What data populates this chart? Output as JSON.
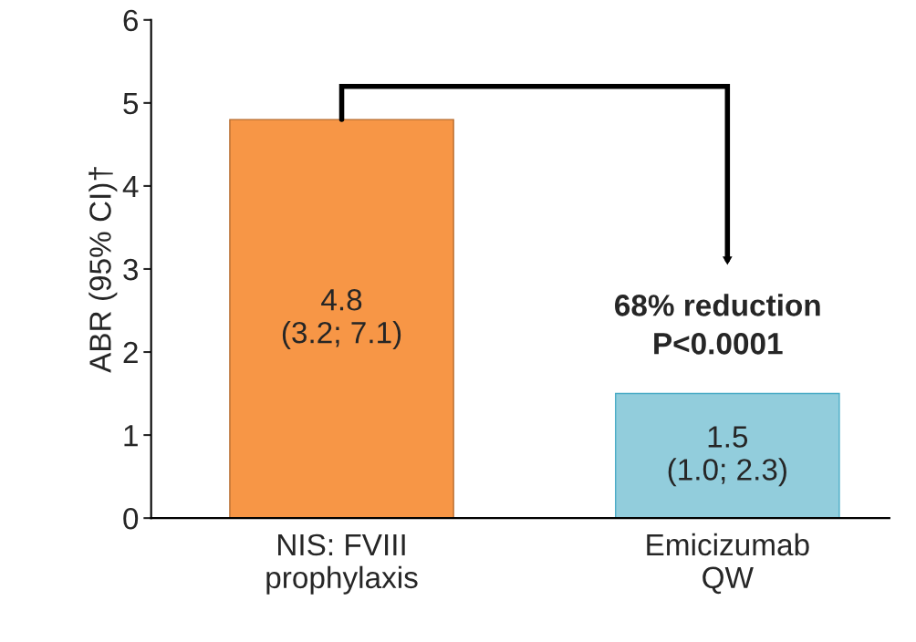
{
  "chart_data": {
    "type": "bar",
    "ylabel": "ABR (95% CI)†",
    "categories": [
      "NIS: FVIII\nprophylaxis",
      "Emicizumab\nQW"
    ],
    "values": [
      4.8,
      1.5
    ],
    "colors": [
      "#f79646",
      "#92cddc"
    ],
    "value_labels": [
      "4.8\n(3.2; 7.1)",
      "1.5\n(1.0; 2.3)"
    ],
    "annotations": [
      "68% reduction\nP<0.0001"
    ],
    "ylim": [
      0,
      6
    ],
    "yticks": [
      0,
      1,
      2,
      3,
      4,
      5,
      6
    ],
    "grid": false,
    "legend": false
  }
}
